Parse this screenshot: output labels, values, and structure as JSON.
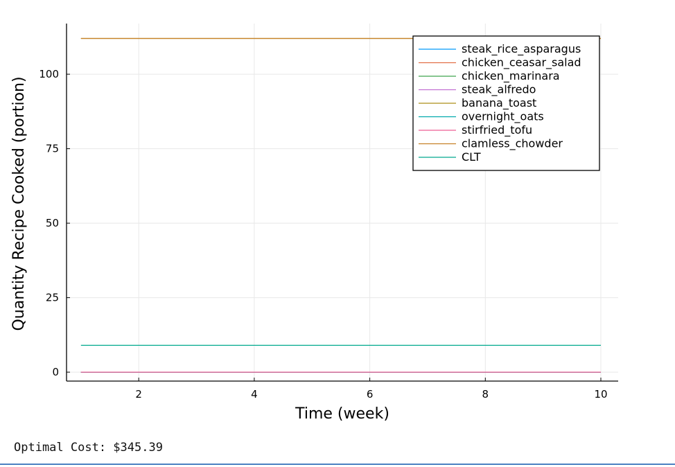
{
  "chart_data": {
    "type": "line",
    "xlabel": "Time (week)",
    "ylabel": "Quantity Recipe Cooked (portion)",
    "xlim": [
      0.75,
      10.3
    ],
    "ylim": [
      -3,
      117
    ],
    "x_ticks": [
      2,
      4,
      6,
      8,
      10
    ],
    "y_ticks": [
      0,
      25,
      50,
      75,
      100
    ],
    "grid": true,
    "legend_position": "top-right",
    "x": [
      1,
      2,
      3,
      4,
      5,
      6,
      7,
      8,
      9,
      10
    ],
    "series": [
      {
        "name": "steak_rice_asparagus",
        "color": "#009af9",
        "values": [
          0,
          0,
          0,
          0,
          0,
          0,
          0,
          0,
          0,
          0
        ]
      },
      {
        "name": "chicken_ceasar_salad",
        "color": "#e26f46",
        "values": [
          0,
          0,
          0,
          0,
          0,
          0,
          0,
          0,
          0,
          0
        ]
      },
      {
        "name": "chicken_marinara",
        "color": "#3da44d",
        "values": [
          0,
          0,
          0,
          0,
          0,
          0,
          0,
          0,
          0,
          0
        ]
      },
      {
        "name": "steak_alfredo",
        "color": "#c271d2",
        "values": [
          0,
          0,
          0,
          0,
          0,
          0,
          0,
          0,
          0,
          0
        ]
      },
      {
        "name": "banana_toast",
        "color": "#ac8e18",
        "values": [
          112,
          112,
          112,
          112,
          112,
          112,
          112,
          112,
          112,
          112
        ]
      },
      {
        "name": "overnight_oats",
        "color": "#00a9ad",
        "values": [
          0,
          0,
          0,
          0,
          0,
          0,
          0,
          0,
          0,
          0
        ]
      },
      {
        "name": "stirfried_tofu",
        "color": "#ed5e93",
        "values": [
          0,
          0,
          0,
          0,
          0,
          0,
          0,
          0,
          0,
          0
        ]
      },
      {
        "name": "clamless_chowder",
        "color": "#c68125",
        "values": [
          112,
          112,
          112,
          112,
          112,
          112,
          112,
          112,
          112,
          112
        ]
      },
      {
        "name": "CLT",
        "color": "#00a98d",
        "values": [
          9,
          9,
          9,
          9,
          9,
          9,
          9,
          9,
          9,
          9
        ]
      }
    ]
  },
  "output": {
    "cost_text": "Optimal Cost: $345.39"
  }
}
